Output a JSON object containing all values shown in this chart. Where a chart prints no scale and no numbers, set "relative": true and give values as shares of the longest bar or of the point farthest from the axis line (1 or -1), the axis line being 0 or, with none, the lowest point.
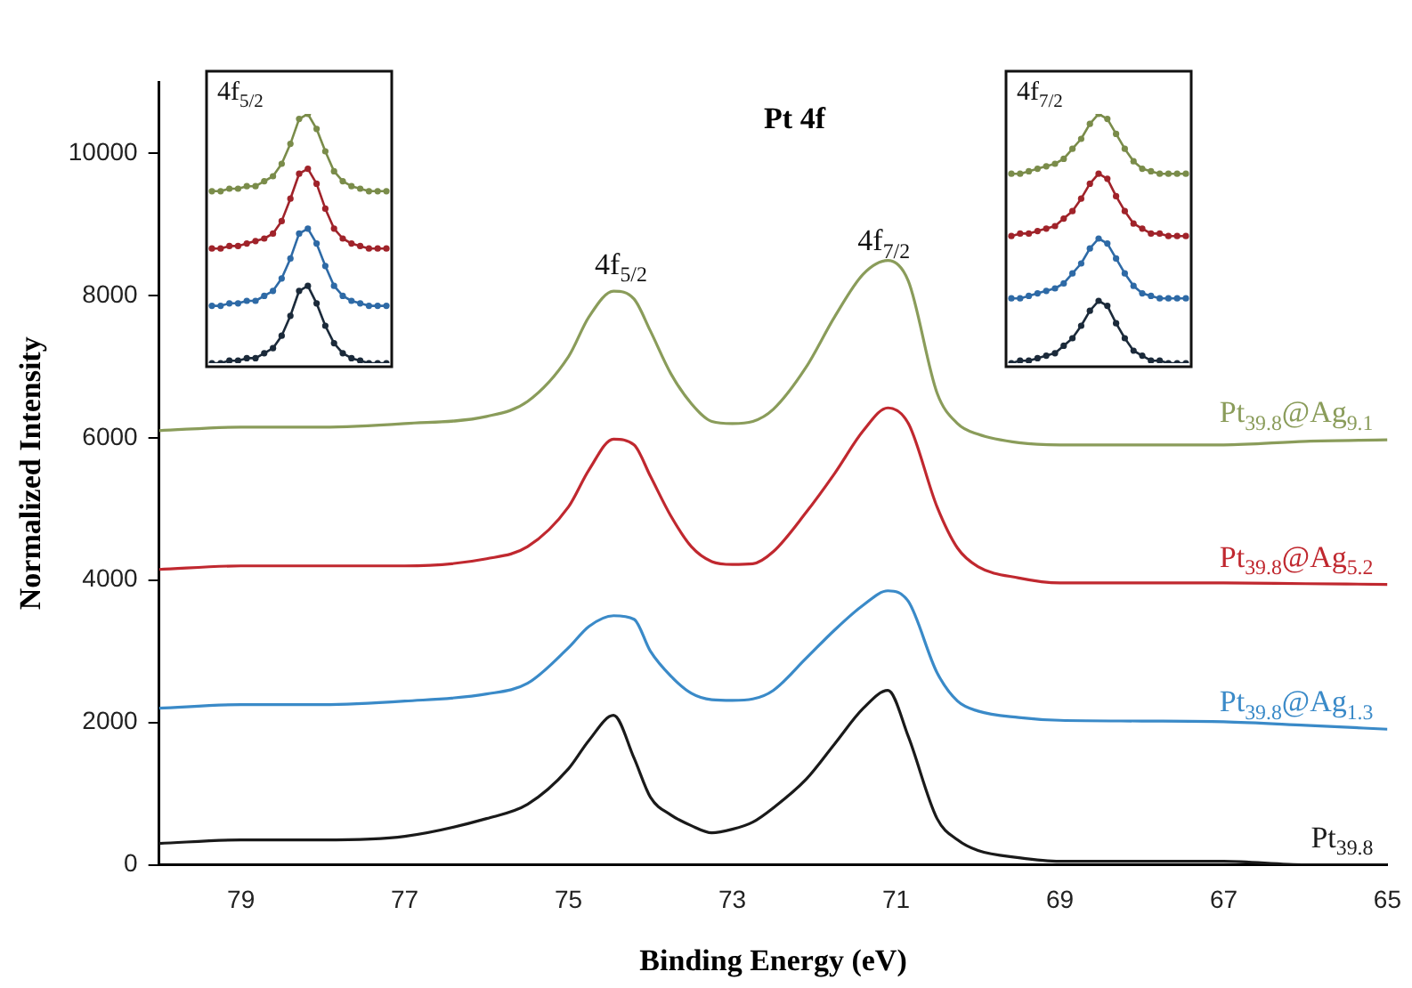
{
  "chart_data": [
    {
      "type": "line",
      "title": "Pt 4f",
      "xlabel": "Binding Energy (eV)",
      "ylabel": "Normalized Intensity",
      "x": [
        80,
        79,
        78,
        77,
        76,
        75.5,
        75,
        74.75,
        74.45,
        74.2,
        74,
        73.75,
        73.5,
        73.25,
        73,
        72.75,
        72.5,
        72.1,
        71.75,
        71.4,
        71.1,
        70.85,
        70.5,
        70.25,
        70,
        69.5,
        69,
        68,
        67,
        66,
        65
      ],
      "xlim": [
        80,
        65
      ],
      "xticks": [
        79,
        77,
        75,
        73,
        71,
        69,
        67,
        65
      ],
      "ylim": [
        0,
        11000
      ],
      "yticks": [
        0,
        2000,
        4000,
        6000,
        8000,
        10000
      ],
      "annotations": [
        "4f$_{5/2}$",
        "4f$_{7/2}$"
      ],
      "series": [
        {
          "name": "Pt$_{39.8}$",
          "color": "#1a1a1a",
          "values": [
            300,
            350,
            350,
            400,
            650,
            850,
            1350,
            1750,
            2100,
            1500,
            950,
            700,
            550,
            450,
            500,
            600,
            800,
            1200,
            1700,
            2200,
            2450,
            1800,
            650,
            350,
            200,
            100,
            50,
            50,
            50,
            0,
            0
          ]
        },
        {
          "name": "Pt$_{39.8}$@Ag$_{1.3}$",
          "color": "#3a8ac8",
          "values": [
            2200,
            2250,
            2250,
            2300,
            2400,
            2550,
            3050,
            3350,
            3500,
            3450,
            3000,
            2650,
            2410,
            2320,
            2310,
            2330,
            2450,
            2900,
            3300,
            3650,
            3850,
            3700,
            2700,
            2300,
            2160,
            2070,
            2030,
            2020,
            2010,
            1960,
            1905
          ]
        },
        {
          "name": "Pt$_{39.8}$@Ag$_{5.2}$",
          "color": "#c0282f",
          "values": [
            4150,
            4200,
            4200,
            4200,
            4300,
            4470,
            5030,
            5550,
            5980,
            5900,
            5460,
            4900,
            4470,
            4260,
            4220,
            4230,
            4400,
            4950,
            5500,
            6100,
            6420,
            6200,
            5030,
            4450,
            4190,
            4030,
            3960,
            3960,
            3960,
            3950,
            3940
          ]
        },
        {
          "name": "Pt$_{39.8}$@Ag$_{9.1}$",
          "color": "#8a9c5a",
          "values": [
            6100,
            6150,
            6150,
            6200,
            6300,
            6510,
            7140,
            7700,
            8060,
            7950,
            7500,
            6900,
            6480,
            6230,
            6200,
            6230,
            6400,
            6990,
            7700,
            8300,
            8490,
            8200,
            6630,
            6200,
            6050,
            5930,
            5900,
            5900,
            5900,
            5950,
            5970
          ]
        }
      ]
    },
    {
      "type": "line",
      "title": "4f$_{5/2}$",
      "relative": true,
      "marker": "circle",
      "categories": [
        null,
        null,
        null,
        null,
        null,
        null,
        null,
        null,
        null,
        null,
        null,
        null,
        null,
        null,
        null,
        null,
        null,
        null,
        null,
        null,
        null
      ],
      "series": [
        {
          "color": "#1b2a3a",
          "values": [
            0,
            0,
            0.01,
            0.01,
            0.02,
            0.02,
            0.04,
            0.06,
            0.11,
            0.19,
            0.29,
            0.31,
            0.24,
            0.15,
            0.08,
            0.04,
            0.02,
            0.01,
            0,
            0,
            0
          ]
        },
        {
          "color": "#2e6aa6",
          "values": [
            0.23,
            0.23,
            0.24,
            0.24,
            0.25,
            0.25,
            0.27,
            0.29,
            0.34,
            0.42,
            0.52,
            0.54,
            0.48,
            0.39,
            0.31,
            0.27,
            0.25,
            0.24,
            0.23,
            0.23,
            0.23
          ]
        },
        {
          "color": "#a0232a",
          "values": [
            0.46,
            0.46,
            0.47,
            0.47,
            0.48,
            0.49,
            0.5,
            0.52,
            0.57,
            0.66,
            0.76,
            0.78,
            0.72,
            0.62,
            0.54,
            0.5,
            0.48,
            0.47,
            0.46,
            0.46,
            0.46
          ]
        },
        {
          "color": "#7a8c4a",
          "values": [
            0.69,
            0.69,
            0.7,
            0.7,
            0.71,
            0.71,
            0.73,
            0.75,
            0.8,
            0.88,
            0.98,
            1,
            0.94,
            0.85,
            0.77,
            0.73,
            0.71,
            0.7,
            0.69,
            0.69,
            0.69
          ]
        }
      ]
    },
    {
      "type": "line",
      "title": "4f$_{7/2}$",
      "relative": true,
      "marker": "circle",
      "categories": [
        null,
        null,
        null,
        null,
        null,
        null,
        null,
        null,
        null,
        null,
        null,
        null,
        null,
        null,
        null,
        null,
        null,
        null,
        null,
        null,
        null
      ],
      "series": [
        {
          "color": "#1b2a3a",
          "values": [
            0,
            0.01,
            0.01,
            0.02,
            0.03,
            0.04,
            0.07,
            0.1,
            0.15,
            0.21,
            0.25,
            0.23,
            0.16,
            0.1,
            0.05,
            0.03,
            0.01,
            0.01,
            0,
            0,
            0
          ]
        },
        {
          "color": "#2e6aa6",
          "values": [
            0.26,
            0.26,
            0.27,
            0.28,
            0.29,
            0.3,
            0.32,
            0.36,
            0.4,
            0.46,
            0.5,
            0.48,
            0.42,
            0.36,
            0.31,
            0.28,
            0.27,
            0.26,
            0.26,
            0.26,
            0.26
          ]
        },
        {
          "color": "#a0232a",
          "values": [
            0.51,
            0.52,
            0.52,
            0.53,
            0.54,
            0.55,
            0.58,
            0.61,
            0.66,
            0.72,
            0.76,
            0.74,
            0.67,
            0.61,
            0.56,
            0.54,
            0.52,
            0.52,
            0.51,
            0.51,
            0.51
          ]
        },
        {
          "color": "#7a8c4a",
          "values": [
            0.76,
            0.76,
            0.77,
            0.78,
            0.79,
            0.8,
            0.82,
            0.86,
            0.9,
            0.96,
            1,
            0.98,
            0.92,
            0.86,
            0.81,
            0.78,
            0.77,
            0.76,
            0.76,
            0.76,
            0.76
          ]
        }
      ]
    }
  ]
}
